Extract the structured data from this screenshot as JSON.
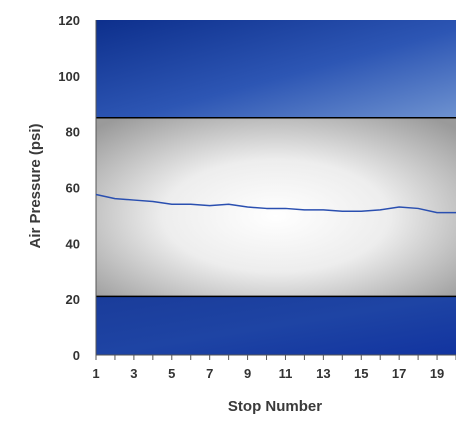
{
  "chart_data": {
    "type": "line",
    "title": "",
    "xlabel": "Stop Number",
    "ylabel": "Air Pressure (psi)",
    "xlim": [
      1,
      20
    ],
    "ylim": [
      0,
      120
    ],
    "x_ticks": [
      1,
      3,
      5,
      7,
      9,
      11,
      13,
      15,
      17,
      19
    ],
    "y_ticks": [
      0,
      20,
      40,
      60,
      80,
      100,
      120
    ],
    "bands": [
      {
        "from": 85,
        "to": 120,
        "fill": "blue-gradient"
      },
      {
        "from": 21,
        "to": 85,
        "fill": "grey-radial"
      },
      {
        "from": 0,
        "to": 21,
        "fill": "blue-gradient"
      }
    ],
    "grid": false,
    "legend": "none",
    "series": [
      {
        "color": "#2a4fb0",
        "x": [
          1,
          2,
          3,
          4,
          5,
          6,
          7,
          8,
          9,
          10,
          11,
          12,
          13,
          14,
          15,
          16,
          17,
          18,
          19,
          20
        ],
        "values": [
          57.5,
          56,
          55.5,
          55,
          54,
          54,
          53.5,
          54,
          53,
          52.5,
          52.5,
          52,
          52,
          51.5,
          51.5,
          52,
          53,
          52.5,
          51,
          51
        ]
      }
    ]
  }
}
